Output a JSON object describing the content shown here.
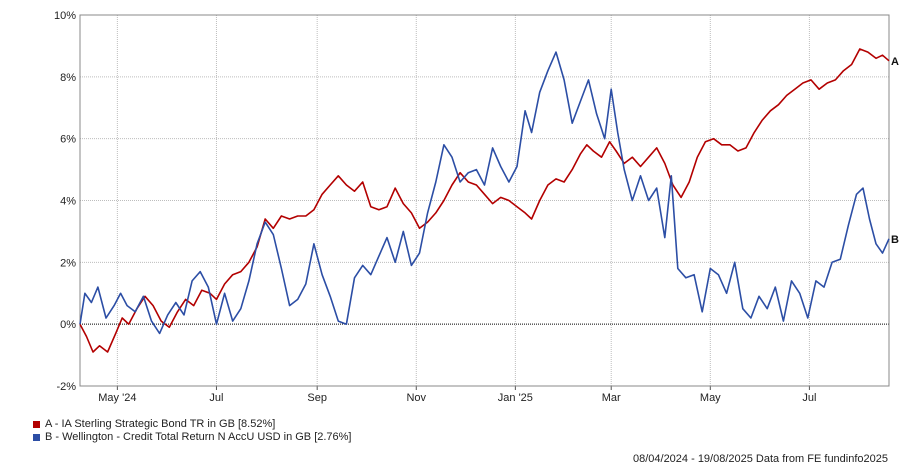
{
  "chart_data": {
    "type": "line",
    "ylim": [
      -2,
      10
    ],
    "y_ticks": [
      -2,
      0,
      2,
      4,
      6,
      8,
      10
    ],
    "y_tick_labels": [
      "-2%",
      "0%",
      "2%",
      "4%",
      "6%",
      "8%",
      "10%"
    ],
    "x_range": [
      "2024-04-08",
      "2025-08-19"
    ],
    "x_ticks": [
      {
        "label": "May '24",
        "date": "2024-05-01"
      },
      {
        "label": "Jul",
        "date": "2024-07-01"
      },
      {
        "label": "Sep",
        "date": "2024-09-01"
      },
      {
        "label": "Nov",
        "date": "2024-11-01"
      },
      {
        "label": "Jan '25",
        "date": "2025-01-01"
      },
      {
        "label": "Mar",
        "date": "2025-03-01"
      },
      {
        "label": "May",
        "date": "2025-05-01"
      },
      {
        "label": "Jul",
        "date": "2025-07-01"
      }
    ],
    "grid": true,
    "zero_line": true,
    "legend_position": "bottom-left",
    "series": [
      {
        "name": "A - IA Sterling Strategic Bond TR in GB [8.52%]",
        "end_label": "A",
        "color": "#b30000",
        "points": [
          [
            "2024-04-08",
            0.0
          ],
          [
            "2024-04-12",
            -0.4
          ],
          [
            "2024-04-16",
            -0.9
          ],
          [
            "2024-04-20",
            -0.7
          ],
          [
            "2024-04-25",
            -0.9
          ],
          [
            "2024-04-30",
            -0.3
          ],
          [
            "2024-05-04",
            0.2
          ],
          [
            "2024-05-08",
            0.0
          ],
          [
            "2024-05-13",
            0.5
          ],
          [
            "2024-05-18",
            0.9
          ],
          [
            "2024-05-23",
            0.6
          ],
          [
            "2024-05-28",
            0.1
          ],
          [
            "2024-06-02",
            -0.1
          ],
          [
            "2024-06-07",
            0.4
          ],
          [
            "2024-06-12",
            0.8
          ],
          [
            "2024-06-17",
            0.6
          ],
          [
            "2024-06-22",
            1.1
          ],
          [
            "2024-06-27",
            1.0
          ],
          [
            "2024-07-01",
            0.8
          ],
          [
            "2024-07-06",
            1.3
          ],
          [
            "2024-07-11",
            1.6
          ],
          [
            "2024-07-16",
            1.7
          ],
          [
            "2024-07-21",
            2.0
          ],
          [
            "2024-07-26",
            2.5
          ],
          [
            "2024-07-31",
            3.4
          ],
          [
            "2024-08-05",
            3.1
          ],
          [
            "2024-08-10",
            3.5
          ],
          [
            "2024-08-15",
            3.4
          ],
          [
            "2024-08-20",
            3.5
          ],
          [
            "2024-08-25",
            3.5
          ],
          [
            "2024-08-30",
            3.7
          ],
          [
            "2024-09-04",
            4.2
          ],
          [
            "2024-09-09",
            4.5
          ],
          [
            "2024-09-14",
            4.8
          ],
          [
            "2024-09-19",
            4.5
          ],
          [
            "2024-09-24",
            4.3
          ],
          [
            "2024-09-29",
            4.6
          ],
          [
            "2024-10-04",
            3.8
          ],
          [
            "2024-10-09",
            3.7
          ],
          [
            "2024-10-14",
            3.8
          ],
          [
            "2024-10-19",
            4.4
          ],
          [
            "2024-10-24",
            3.9
          ],
          [
            "2024-10-29",
            3.6
          ],
          [
            "2024-11-03",
            3.1
          ],
          [
            "2024-11-08",
            3.3
          ],
          [
            "2024-11-13",
            3.6
          ],
          [
            "2024-11-18",
            4.0
          ],
          [
            "2024-11-23",
            4.5
          ],
          [
            "2024-11-28",
            4.9
          ],
          [
            "2024-12-03",
            4.6
          ],
          [
            "2024-12-08",
            4.5
          ],
          [
            "2024-12-13",
            4.2
          ],
          [
            "2024-12-18",
            3.9
          ],
          [
            "2024-12-23",
            4.1
          ],
          [
            "2024-12-28",
            4.0
          ],
          [
            "2025-01-02",
            3.8
          ],
          [
            "2025-01-07",
            3.6
          ],
          [
            "2025-01-11",
            3.4
          ],
          [
            "2025-01-16",
            4.0
          ],
          [
            "2025-01-21",
            4.5
          ],
          [
            "2025-01-26",
            4.7
          ],
          [
            "2025-01-31",
            4.6
          ],
          [
            "2025-02-05",
            5.0
          ],
          [
            "2025-02-10",
            5.5
          ],
          [
            "2025-02-14",
            5.8
          ],
          [
            "2025-02-18",
            5.6
          ],
          [
            "2025-02-23",
            5.4
          ],
          [
            "2025-02-28",
            5.9
          ],
          [
            "2025-03-04",
            5.6
          ],
          [
            "2025-03-09",
            5.2
          ],
          [
            "2025-03-14",
            5.4
          ],
          [
            "2025-03-19",
            5.1
          ],
          [
            "2025-03-24",
            5.4
          ],
          [
            "2025-03-29",
            5.7
          ],
          [
            "2025-04-03",
            5.2
          ],
          [
            "2025-04-08",
            4.5
          ],
          [
            "2025-04-13",
            4.1
          ],
          [
            "2025-04-18",
            4.6
          ],
          [
            "2025-04-23",
            5.4
          ],
          [
            "2025-04-28",
            5.9
          ],
          [
            "2025-05-03",
            6.0
          ],
          [
            "2025-05-08",
            5.8
          ],
          [
            "2025-05-13",
            5.8
          ],
          [
            "2025-05-18",
            5.6
          ],
          [
            "2025-05-23",
            5.7
          ],
          [
            "2025-05-28",
            6.2
          ],
          [
            "2025-06-02",
            6.6
          ],
          [
            "2025-06-07",
            6.9
          ],
          [
            "2025-06-12",
            7.1
          ],
          [
            "2025-06-17",
            7.4
          ],
          [
            "2025-06-22",
            7.6
          ],
          [
            "2025-06-27",
            7.8
          ],
          [
            "2025-07-02",
            7.9
          ],
          [
            "2025-07-07",
            7.6
          ],
          [
            "2025-07-12",
            7.8
          ],
          [
            "2025-07-17",
            7.9
          ],
          [
            "2025-07-22",
            8.2
          ],
          [
            "2025-07-27",
            8.4
          ],
          [
            "2025-08-01",
            8.9
          ],
          [
            "2025-08-06",
            8.8
          ],
          [
            "2025-08-11",
            8.6
          ],
          [
            "2025-08-15",
            8.7
          ],
          [
            "2025-08-19",
            8.52
          ]
        ]
      },
      {
        "name": "B - Wellington - Credit Total Return N AccU USD in GB [2.76%]",
        "end_label": "B",
        "color": "#2c4ea5",
        "points": [
          [
            "2024-04-08",
            0.0
          ],
          [
            "2024-04-11",
            1.0
          ],
          [
            "2024-04-15",
            0.7
          ],
          [
            "2024-04-19",
            1.2
          ],
          [
            "2024-04-24",
            0.2
          ],
          [
            "2024-04-29",
            0.6
          ],
          [
            "2024-05-03",
            1.0
          ],
          [
            "2024-05-07",
            0.6
          ],
          [
            "2024-05-12",
            0.4
          ],
          [
            "2024-05-17",
            0.9
          ],
          [
            "2024-05-22",
            0.1
          ],
          [
            "2024-05-27",
            -0.3
          ],
          [
            "2024-06-01",
            0.3
          ],
          [
            "2024-06-06",
            0.7
          ],
          [
            "2024-06-11",
            0.3
          ],
          [
            "2024-06-16",
            1.4
          ],
          [
            "2024-06-21",
            1.7
          ],
          [
            "2024-06-26",
            1.2
          ],
          [
            "2024-07-01",
            0.0
          ],
          [
            "2024-07-06",
            1.0
          ],
          [
            "2024-07-11",
            0.1
          ],
          [
            "2024-07-16",
            0.5
          ],
          [
            "2024-07-21",
            1.4
          ],
          [
            "2024-07-26",
            2.6
          ],
          [
            "2024-07-31",
            3.3
          ],
          [
            "2024-08-05",
            2.9
          ],
          [
            "2024-08-10",
            1.8
          ],
          [
            "2024-08-15",
            0.6
          ],
          [
            "2024-08-20",
            0.8
          ],
          [
            "2024-08-25",
            1.3
          ],
          [
            "2024-08-30",
            2.6
          ],
          [
            "2024-09-04",
            1.6
          ],
          [
            "2024-09-09",
            0.9
          ],
          [
            "2024-09-14",
            0.1
          ],
          [
            "2024-09-19",
            0.0
          ],
          [
            "2024-09-24",
            1.5
          ],
          [
            "2024-09-29",
            1.9
          ],
          [
            "2024-10-04",
            1.6
          ],
          [
            "2024-10-09",
            2.2
          ],
          [
            "2024-10-14",
            2.8
          ],
          [
            "2024-10-19",
            2.0
          ],
          [
            "2024-10-24",
            3.0
          ],
          [
            "2024-10-29",
            1.9
          ],
          [
            "2024-11-03",
            2.3
          ],
          [
            "2024-11-08",
            3.6
          ],
          [
            "2024-11-13",
            4.6
          ],
          [
            "2024-11-18",
            5.8
          ],
          [
            "2024-11-23",
            5.4
          ],
          [
            "2024-11-28",
            4.6
          ],
          [
            "2024-12-03",
            4.9
          ],
          [
            "2024-12-08",
            5.0
          ],
          [
            "2024-12-13",
            4.5
          ],
          [
            "2024-12-18",
            5.7
          ],
          [
            "2024-12-23",
            5.1
          ],
          [
            "2024-12-28",
            4.6
          ],
          [
            "2025-01-02",
            5.1
          ],
          [
            "2025-01-07",
            6.9
          ],
          [
            "2025-01-11",
            6.2
          ],
          [
            "2025-01-16",
            7.5
          ],
          [
            "2025-01-21",
            8.2
          ],
          [
            "2025-01-26",
            8.8
          ],
          [
            "2025-01-31",
            7.9
          ],
          [
            "2025-02-05",
            6.5
          ],
          [
            "2025-02-10",
            7.2
          ],
          [
            "2025-02-15",
            7.9
          ],
          [
            "2025-02-20",
            6.8
          ],
          [
            "2025-02-25",
            6.0
          ],
          [
            "2025-03-01",
            7.6
          ],
          [
            "2025-03-05",
            6.2
          ],
          [
            "2025-03-09",
            5.0
          ],
          [
            "2025-03-14",
            4.0
          ],
          [
            "2025-03-19",
            4.8
          ],
          [
            "2025-03-24",
            4.0
          ],
          [
            "2025-03-29",
            4.4
          ],
          [
            "2025-04-03",
            2.8
          ],
          [
            "2025-04-07",
            4.8
          ],
          [
            "2025-04-11",
            1.8
          ],
          [
            "2025-04-16",
            1.5
          ],
          [
            "2025-04-21",
            1.6
          ],
          [
            "2025-04-26",
            0.4
          ],
          [
            "2025-05-01",
            1.8
          ],
          [
            "2025-05-06",
            1.6
          ],
          [
            "2025-05-11",
            1.0
          ],
          [
            "2025-05-16",
            2.0
          ],
          [
            "2025-05-21",
            0.5
          ],
          [
            "2025-05-26",
            0.2
          ],
          [
            "2025-05-31",
            0.9
          ],
          [
            "2025-06-05",
            0.5
          ],
          [
            "2025-06-10",
            1.2
          ],
          [
            "2025-06-15",
            0.1
          ],
          [
            "2025-06-20",
            1.4
          ],
          [
            "2025-06-25",
            1.0
          ],
          [
            "2025-06-30",
            0.2
          ],
          [
            "2025-07-05",
            1.4
          ],
          [
            "2025-07-10",
            1.2
          ],
          [
            "2025-07-15",
            2.0
          ],
          [
            "2025-07-20",
            2.1
          ],
          [
            "2025-07-25",
            3.2
          ],
          [
            "2025-07-30",
            4.2
          ],
          [
            "2025-08-03",
            4.4
          ],
          [
            "2025-08-07",
            3.4
          ],
          [
            "2025-08-11",
            2.6
          ],
          [
            "2025-08-15",
            2.3
          ],
          [
            "2025-08-19",
            2.76
          ]
        ]
      }
    ]
  },
  "footer": {
    "date_range_text": "08/04/2024 - 19/08/2025 Data from FE fundinfo2025"
  }
}
